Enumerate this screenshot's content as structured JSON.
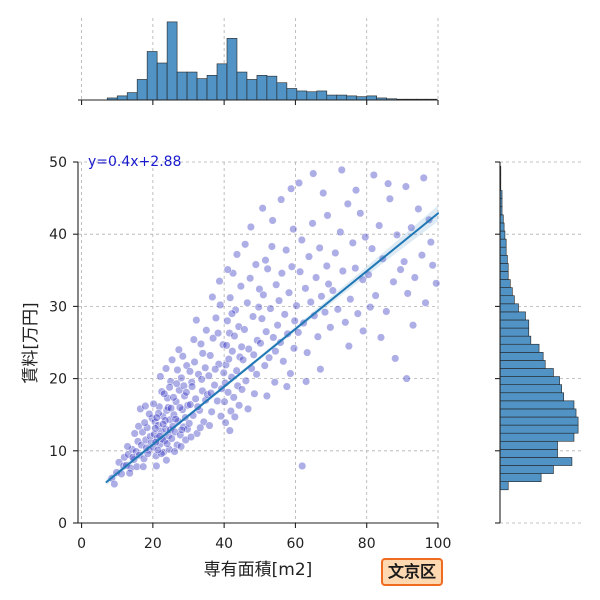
{
  "chart_data": {
    "type": "scatter",
    "xlabel": "専有面積[m2]",
    "ylabel": "賃料[万円]",
    "xlim": [
      -1,
      100
    ],
    "ylim": [
      0,
      50
    ],
    "xticks": [
      0,
      20,
      40,
      60,
      80,
      100
    ],
    "yticks": [
      0,
      10,
      20,
      30,
      40,
      50
    ],
    "grid": true,
    "annotation": "y=0.4x+2.88",
    "regression": {
      "slope": 0.4,
      "intercept": 2.88,
      "x_range": [
        7,
        100
      ]
    },
    "points": [
      [
        8.5,
        6.2
      ],
      [
        9.8,
        7.0
      ],
      [
        10.5,
        8.4
      ],
      [
        11.2,
        6.8
      ],
      [
        12.0,
        9.1
      ],
      [
        9.2,
        5.4
      ],
      [
        11.8,
        7.9
      ],
      [
        12.6,
        8.0
      ],
      [
        13.1,
        9.5
      ],
      [
        13.8,
        7.6
      ],
      [
        14.2,
        10.2
      ],
      [
        14.7,
        8.8
      ],
      [
        15.3,
        9.9
      ],
      [
        15.8,
        11.3
      ],
      [
        13.5,
        6.9
      ],
      [
        14.9,
        12.4
      ],
      [
        15.5,
        7.8
      ],
      [
        12.9,
        10.6
      ],
      [
        14.4,
        9.1
      ],
      [
        16.2,
        9.4
      ],
      [
        16.8,
        10.8
      ],
      [
        17.1,
        12.6
      ],
      [
        17.5,
        8.9
      ],
      [
        18.0,
        11.5
      ],
      [
        18.4,
        13.2
      ],
      [
        18.9,
        10.1
      ],
      [
        19.3,
        12.0
      ],
      [
        19.8,
        14.5
      ],
      [
        16.5,
        15.8
      ],
      [
        17.9,
        16.2
      ],
      [
        18.6,
        9.6
      ],
      [
        19.5,
        11.1
      ],
      [
        17.3,
        7.8
      ],
      [
        16.0,
        13.4
      ],
      [
        19.0,
        15.1
      ],
      [
        18.2,
        10.4
      ],
      [
        17.7,
        13.9
      ],
      [
        20.1,
        10.5
      ],
      [
        20.4,
        12.3
      ],
      [
        20.6,
        14.0
      ],
      [
        20.9,
        9.3
      ],
      [
        21.2,
        11.8
      ],
      [
        21.5,
        13.5
      ],
      [
        21.8,
        16.1
      ],
      [
        22.0,
        10.9
      ],
      [
        22.3,
        12.7
      ],
      [
        22.5,
        18.2
      ],
      [
        22.8,
        14.8
      ],
      [
        23.0,
        9.8
      ],
      [
        23.3,
        11.4
      ],
      [
        23.6,
        13.0
      ],
      [
        23.9,
        15.6
      ],
      [
        24.1,
        17.3
      ],
      [
        24.4,
        12.1
      ],
      [
        24.6,
        10.2
      ],
      [
        24.8,
        14.3
      ],
      [
        25.0,
        19.6
      ],
      [
        20.2,
        16.5
      ],
      [
        21.0,
        7.9
      ],
      [
        21.6,
        15.2
      ],
      [
        22.1,
        20.3
      ],
      [
        22.7,
        11.6
      ],
      [
        23.2,
        17.9
      ],
      [
        23.8,
        8.7
      ],
      [
        24.3,
        16.0
      ],
      [
        24.9,
        12.9
      ],
      [
        20.7,
        13.1
      ],
      [
        21.9,
        12.0
      ],
      [
        23.5,
        14.2
      ],
      [
        24.0,
        11.0
      ],
      [
        22.4,
        9.6
      ],
      [
        21.4,
        10.1
      ],
      [
        20.8,
        11.2
      ],
      [
        23.7,
        21.4
      ],
      [
        24.7,
        18.8
      ],
      [
        22.9,
        13.7
      ],
      [
        21.1,
        14.6
      ],
      [
        25.3,
        11.7
      ],
      [
        25.6,
        13.4
      ],
      [
        25.9,
        15.0
      ],
      [
        26.2,
        12.6
      ],
      [
        26.5,
        16.8
      ],
      [
        26.8,
        10.8
      ],
      [
        27.1,
        14.1
      ],
      [
        27.4,
        18.4
      ],
      [
        27.7,
        12.2
      ],
      [
        28.0,
        20.1
      ],
      [
        28.3,
        15.7
      ],
      [
        28.6,
        13.3
      ],
      [
        28.9,
        17.6
      ],
      [
        29.2,
        11.5
      ],
      [
        29.5,
        21.8
      ],
      [
        29.8,
        16.3
      ],
      [
        25.4,
        22.6
      ],
      [
        26.1,
        9.9
      ],
      [
        26.7,
        19.3
      ],
      [
        27.3,
        24.0
      ],
      [
        27.9,
        10.6
      ],
      [
        28.4,
        23.1
      ],
      [
        29.1,
        14.6
      ],
      [
        29.7,
        13.0
      ],
      [
        25.8,
        17.4
      ],
      [
        26.4,
        14.4
      ],
      [
        27.6,
        16.0
      ],
      [
        28.7,
        19.0
      ],
      [
        29.4,
        18.1
      ],
      [
        25.1,
        15.9
      ],
      [
        26.9,
        21.2
      ],
      [
        28.1,
        12.9
      ],
      [
        30.2,
        13.8
      ],
      [
        30.5,
        16.4
      ],
      [
        30.9,
        19.5
      ],
      [
        31.3,
        14.9
      ],
      [
        31.7,
        22.3
      ],
      [
        32.0,
        17.2
      ],
      [
        32.4,
        12.4
      ],
      [
        32.8,
        20.6
      ],
      [
        33.1,
        15.6
      ],
      [
        33.5,
        24.8
      ],
      [
        33.9,
        18.3
      ],
      [
        34.3,
        14.0
      ],
      [
        34.7,
        21.5
      ],
      [
        35.0,
        26.7
      ],
      [
        30.7,
        11.9
      ],
      [
        31.5,
        25.4
      ],
      [
        32.2,
        28.1
      ],
      [
        33.3,
        13.2
      ],
      [
        34.0,
        23.5
      ],
      [
        34.8,
        17.0
      ],
      [
        31.0,
        18.9
      ],
      [
        32.6,
        16.1
      ],
      [
        33.7,
        19.9
      ],
      [
        30.4,
        21.0
      ],
      [
        35.3,
        17.8
      ],
      [
        35.7,
        20.4
      ],
      [
        36.1,
        23.2
      ],
      [
        36.5,
        15.4
      ],
      [
        36.9,
        25.6
      ],
      [
        37.3,
        19.1
      ],
      [
        37.7,
        28.4
      ],
      [
        38.1,
        16.9
      ],
      [
        38.5,
        22.0
      ],
      [
        38.9,
        30.2
      ],
      [
        39.3,
        18.6
      ],
      [
        39.7,
        24.7
      ],
      [
        35.9,
        13.5
      ],
      [
        36.7,
        31.3
      ],
      [
        37.5,
        21.3
      ],
      [
        38.3,
        26.3
      ],
      [
        39.1,
        14.8
      ],
      [
        39.9,
        20.8
      ],
      [
        36.3,
        18.0
      ],
      [
        38.7,
        33.5
      ],
      [
        40.1,
        16.8
      ],
      [
        40.3,
        19.4
      ],
      [
        40.5,
        21.9
      ],
      [
        40.7,
        24.6
      ],
      [
        40.9,
        28.0
      ],
      [
        41.1,
        18.1
      ],
      [
        41.3,
        22.7
      ],
      [
        41.5,
        26.3
      ],
      [
        41.7,
        31.2
      ],
      [
        41.9,
        15.5
      ],
      [
        42.1,
        20.2
      ],
      [
        42.3,
        23.8
      ],
      [
        42.5,
        34.6
      ],
      [
        42.7,
        17.4
      ],
      [
        42.9,
        25.9
      ],
      [
        43.2,
        29.5
      ],
      [
        43.5,
        21.1
      ],
      [
        43.8,
        19.0
      ],
      [
        44.1,
        27.2
      ],
      [
        44.4,
        23.0
      ],
      [
        44.7,
        32.8
      ],
      [
        45.0,
        18.5
      ],
      [
        40.4,
        13.9
      ],
      [
        41.0,
        35.1
      ],
      [
        41.6,
        12.8
      ],
      [
        42.2,
        29.0
      ],
      [
        43.0,
        14.7
      ],
      [
        43.6,
        37.2
      ],
      [
        44.2,
        16.3
      ],
      [
        44.9,
        24.4
      ],
      [
        45.3,
        22.6
      ],
      [
        45.7,
        26.8
      ],
      [
        46.1,
        19.7
      ],
      [
        46.5,
        30.5
      ],
      [
        46.9,
        24.1
      ],
      [
        47.3,
        33.9
      ],
      [
        47.7,
        21.4
      ],
      [
        48.1,
        28.6
      ],
      [
        48.5,
        17.9
      ],
      [
        48.9,
        35.8
      ],
      [
        49.3,
        25.3
      ],
      [
        49.7,
        29.9
      ],
      [
        45.9,
        38.6
      ],
      [
        46.7,
        15.8
      ],
      [
        47.5,
        41.0
      ],
      [
        48.3,
        23.3
      ],
      [
        49.1,
        20.6
      ],
      [
        49.9,
        32.4
      ],
      [
        50.2,
        24.9
      ],
      [
        50.6,
        28.3
      ],
      [
        51.0,
        31.6
      ],
      [
        51.4,
        21.8
      ],
      [
        51.8,
        26.5
      ],
      [
        52.2,
        35.2
      ],
      [
        52.6,
        22.9
      ],
      [
        53.0,
        29.7
      ],
      [
        53.4,
        38.3
      ],
      [
        53.8,
        25.7
      ],
      [
        54.2,
        19.5
      ],
      [
        54.6,
        33.0
      ],
      [
        55.0,
        27.4
      ],
      [
        50.8,
        43.6
      ],
      [
        52.0,
        17.6
      ],
      [
        53.6,
        41.9
      ],
      [
        54.4,
        23.8
      ],
      [
        51.6,
        36.4
      ],
      [
        55.4,
        30.8
      ],
      [
        55.8,
        25.0
      ],
      [
        56.2,
        34.6
      ],
      [
        56.6,
        22.4
      ],
      [
        57.0,
        28.9
      ],
      [
        57.4,
        37.8
      ],
      [
        57.8,
        26.2
      ],
      [
        58.2,
        31.9
      ],
      [
        58.6,
        20.7
      ],
      [
        59.0,
        35.5
      ],
      [
        59.4,
        40.7
      ],
      [
        59.8,
        28.0
      ],
      [
        56.0,
        44.8
      ],
      [
        57.6,
        18.9
      ],
      [
        58.8,
        46.3
      ],
      [
        59.6,
        24.2
      ],
      [
        60.3,
        30.1
      ],
      [
        60.8,
        26.4
      ],
      [
        61.3,
        34.8
      ],
      [
        61.8,
        39.2
      ],
      [
        62.3,
        27.7
      ],
      [
        62.8,
        32.5
      ],
      [
        63.3,
        23.6
      ],
      [
        63.8,
        36.9
      ],
      [
        64.3,
        30.6
      ],
      [
        64.8,
        41.5
      ],
      [
        65.3,
        28.7
      ],
      [
        65.8,
        34.0
      ],
      [
        66.3,
        25.8
      ],
      [
        66.8,
        38.1
      ],
      [
        67.3,
        31.4
      ],
      [
        67.8,
        45.7
      ],
      [
        68.3,
        29.2
      ],
      [
        68.8,
        35.6
      ],
      [
        69.3,
        33.1
      ],
      [
        69.8,
        27.1
      ],
      [
        61.0,
        47.1
      ],
      [
        63.0,
        19.6
      ],
      [
        65.0,
        48.4
      ],
      [
        67.0,
        21.3
      ],
      [
        69.0,
        42.6
      ],
      [
        61.9,
        7.9
      ],
      [
        70.5,
        32.2
      ],
      [
        71.2,
        37.4
      ],
      [
        71.9,
        29.6
      ],
      [
        72.6,
        40.3
      ],
      [
        73.3,
        34.9
      ],
      [
        74.0,
        27.8
      ],
      [
        74.7,
        44.2
      ],
      [
        75.4,
        31.0
      ],
      [
        76.1,
        38.8
      ],
      [
        76.8,
        35.3
      ],
      [
        77.5,
        29.0
      ],
      [
        78.2,
        42.9
      ],
      [
        78.9,
        33.7
      ],
      [
        79.6,
        39.6
      ],
      [
        73.0,
        48.9
      ],
      [
        75.0,
        24.5
      ],
      [
        77.0,
        46.1
      ],
      [
        79.0,
        26.6
      ],
      [
        80.5,
        34.4
      ],
      [
        81.5,
        38.0
      ],
      [
        82.5,
        31.5
      ],
      [
        83.5,
        41.2
      ],
      [
        84.5,
        36.6
      ],
      [
        85.5,
        29.3
      ],
      [
        86.5,
        44.9
      ],
      [
        87.5,
        33.4
      ],
      [
        88.5,
        39.9
      ],
      [
        89.5,
        35.1
      ],
      [
        82.0,
        48.2
      ],
      [
        84.0,
        25.7
      ],
      [
        86.0,
        47.0
      ],
      [
        88.0,
        22.8
      ],
      [
        81.0,
        29.9
      ],
      [
        90.5,
        36.2
      ],
      [
        91.5,
        31.8
      ],
      [
        92.5,
        40.9
      ],
      [
        93.5,
        34.0
      ],
      [
        94.5,
        43.5
      ],
      [
        95.5,
        37.1
      ],
      [
        96.5,
        30.5
      ],
      [
        97.5,
        42.0
      ],
      [
        98.5,
        35.7
      ],
      [
        99.5,
        33.2
      ],
      [
        91.0,
        46.6
      ],
      [
        93.0,
        27.4
      ],
      [
        91.2,
        20.0
      ],
      [
        96.0,
        47.8
      ],
      [
        98.0,
        38.9
      ]
    ],
    "marginal_x_histogram": {
      "bin_start": 7.2,
      "bin_width": 2.8,
      "counts": [
        5,
        10,
        18,
        50,
        118,
        90,
        190,
        68,
        68,
        52,
        60,
        88,
        150,
        68,
        50,
        60,
        58,
        42,
        28,
        22,
        20,
        22,
        12,
        12,
        10,
        8,
        10,
        5,
        3,
        2,
        2,
        2,
        2
      ]
    },
    "marginal_y_histogram": {
      "bin_start": 4.6,
      "bin_width": 1.12,
      "counts": [
        20,
        100,
        130,
        175,
        140,
        140,
        180,
        190,
        190,
        185,
        180,
        155,
        150,
        145,
        130,
        110,
        105,
        95,
        75,
        70,
        70,
        62,
        45,
        35,
        30,
        25,
        20,
        20,
        18,
        15,
        15,
        12,
        10,
        8,
        5,
        5,
        5,
        2,
        2,
        2
      ]
    }
  },
  "badge": {
    "label": "文京区"
  },
  "colors": {
    "points": "#2a2ac0",
    "regression_line": "#1f77b4",
    "bars": "#5193c4",
    "bar_edge": "#222222",
    "annotation": "#1a1acd",
    "grid": "#b0b0b0",
    "badge_background": "#fdd8b0",
    "badge_border": "#f06a1f"
  }
}
